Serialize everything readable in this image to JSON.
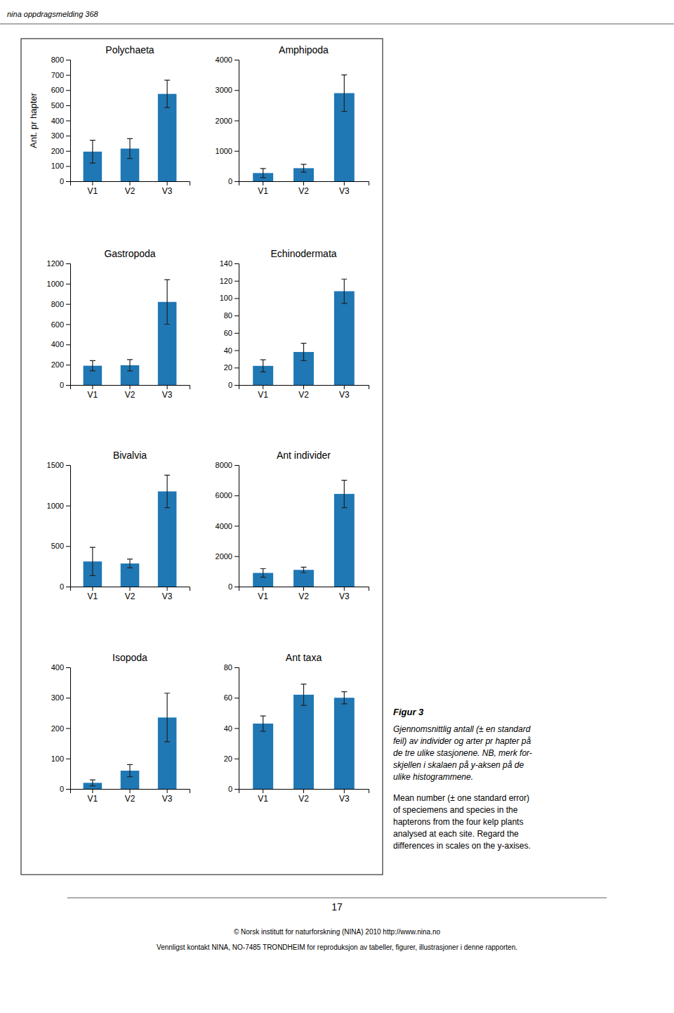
{
  "chart_data": [
    {
      "type": "bar",
      "title": "Polychaeta",
      "ylabel": "Ant. pr hapter",
      "categories": [
        "V1",
        "V2",
        "V3"
      ],
      "values": [
        195,
        215,
        575
      ],
      "errors": [
        75,
        65,
        90
      ],
      "ylim": [
        0,
        800
      ],
      "yticks": [
        0,
        100,
        200,
        300,
        400,
        500,
        600,
        700,
        800
      ]
    },
    {
      "type": "bar",
      "title": "Amphipoda",
      "categories": [
        "V1",
        "V2",
        "V3"
      ],
      "values": [
        270,
        430,
        2900
      ],
      "errors": [
        150,
        130,
        600
      ],
      "ylim": [
        0,
        4000
      ],
      "yticks": [
        0,
        1000,
        2000,
        3000,
        4000
      ]
    },
    {
      "type": "bar",
      "title": "Gastropoda",
      "categories": [
        "V1",
        "V2",
        "V3"
      ],
      "values": [
        190,
        195,
        820
      ],
      "errors": [
        50,
        55,
        220
      ],
      "ylim": [
        0,
        1200
      ],
      "yticks": [
        0,
        200,
        400,
        600,
        800,
        1000,
        1200
      ]
    },
    {
      "type": "bar",
      "title": "Echinodermata",
      "categories": [
        "V1",
        "V2",
        "V3"
      ],
      "values": [
        22,
        38,
        108
      ],
      "errors": [
        7,
        10,
        14
      ],
      "ylim": [
        0,
        140
      ],
      "yticks": [
        0,
        20,
        40,
        60,
        80,
        100,
        120,
        140
      ]
    },
    {
      "type": "bar",
      "title": "Bivalvia",
      "categories": [
        "V1",
        "V2",
        "V3"
      ],
      "values": [
        310,
        285,
        1175
      ],
      "errors": [
        175,
        55,
        200
      ],
      "ylim": [
        0,
        1500
      ],
      "yticks": [
        0,
        500,
        1000,
        1500
      ]
    },
    {
      "type": "bar",
      "title": "Ant  individer",
      "categories": [
        "V1",
        "V2",
        "V3"
      ],
      "values": [
        900,
        1100,
        6100
      ],
      "errors": [
        280,
        175,
        900
      ],
      "ylim": [
        0,
        8000
      ],
      "yticks": [
        0,
        2000,
        4000,
        6000,
        8000
      ]
    },
    {
      "type": "bar",
      "title": "Isopoda",
      "categories": [
        "V1",
        "V2",
        "V3"
      ],
      "values": [
        20,
        60,
        235
      ],
      "errors": [
        10,
        20,
        80
      ],
      "ylim": [
        0,
        400
      ],
      "yticks": [
        0,
        100,
        200,
        300,
        400
      ]
    },
    {
      "type": "bar",
      "title": "Ant  taxa",
      "categories": [
        "V1",
        "V2",
        "V3"
      ],
      "values": [
        43,
        62,
        60
      ],
      "errors": [
        5,
        7,
        4
      ],
      "ylim": [
        0,
        80
      ],
      "yticks": [
        0,
        20,
        40,
        60,
        80
      ]
    }
  ],
  "annotations": [
    "nina oppdragsmelding 368",
    "Figur 3",
    "Gjennomsnittlig antall (± en standard\nfeil) av individer og arter pr hapter på\nde tre ulike stasjonene. NB, merk for-\nskjellen i skalaen på y-aksen på de\nulike histogrammene.",
    "Mean number (± one standard error)\nof speciemens and species in the\nhapterons from the four kelp plants\nanalysed at each site. Regard the\ndifferences in scales on the y-axises.",
    "17",
    "© Norsk institutt for naturforskning (NINA) 2010 http://www.nina.no",
    "Vennligst kontakt NINA, NO-7485 TRONDHEIM for reproduksjon av tabeller, figurer, illustrasjoner i denne rapporten."
  ]
}
